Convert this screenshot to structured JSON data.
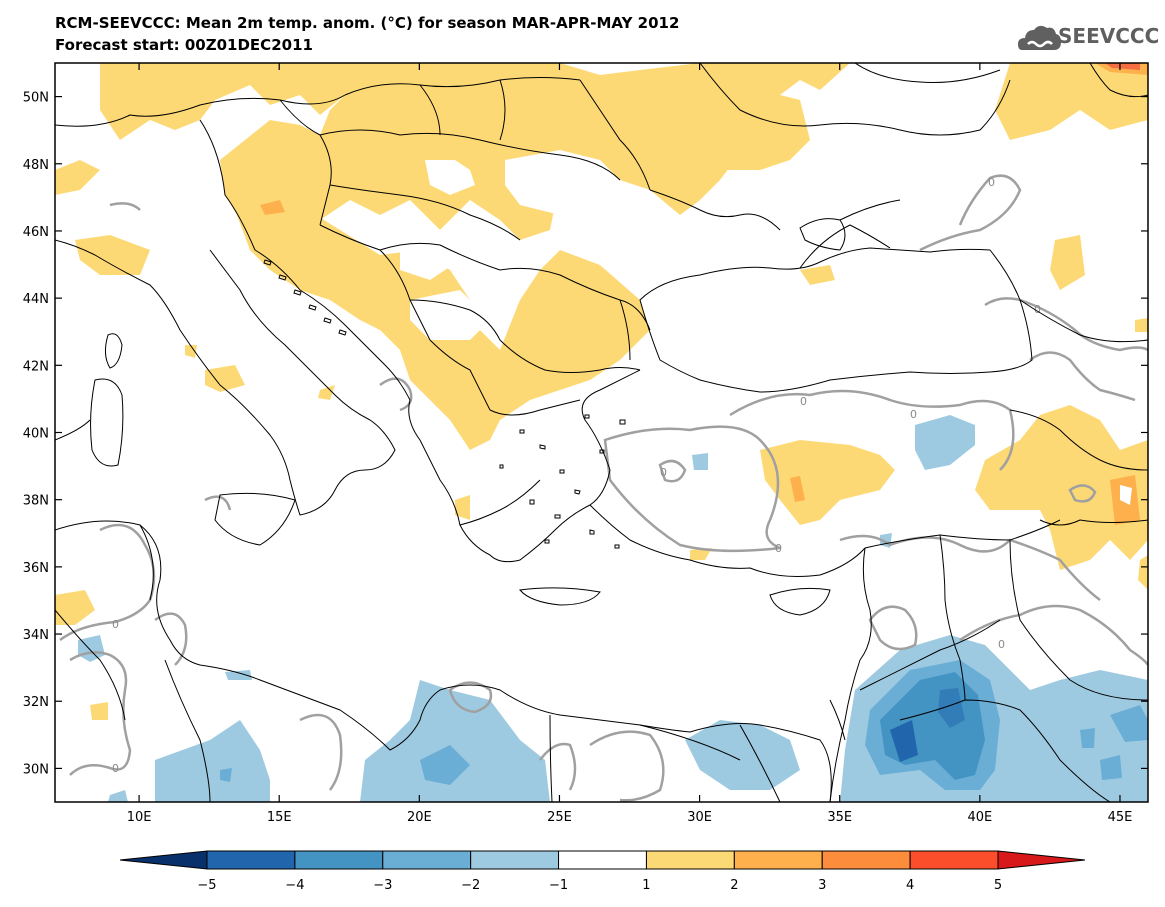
{
  "header": {
    "title_line1": "RCM-SEEVCCC: Mean 2m temp. anom. (°C) for season MAR-APR-MAY 2012",
    "title_line2": "Forecast start: 00Z01DEC2011",
    "logo_text": "SEEVCCC"
  },
  "map": {
    "lon_range": [
      7,
      46
    ],
    "lat_range": [
      29,
      51
    ],
    "lat_ticks": [
      {
        "value": 50,
        "label": "50N"
      },
      {
        "value": 48,
        "label": "48N"
      },
      {
        "value": 46,
        "label": "46N"
      },
      {
        "value": 44,
        "label": "44N"
      },
      {
        "value": 42,
        "label": "42N"
      },
      {
        "value": 40,
        "label": "40N"
      },
      {
        "value": 38,
        "label": "38N"
      },
      {
        "value": 36,
        "label": "36N"
      },
      {
        "value": 34,
        "label": "34N"
      },
      {
        "value": 32,
        "label": "32N"
      },
      {
        "value": 30,
        "label": "30N"
      }
    ],
    "lon_ticks": [
      {
        "value": 10,
        "label": "10E"
      },
      {
        "value": 15,
        "label": "15E"
      },
      {
        "value": 20,
        "label": "20E"
      },
      {
        "value": 25,
        "label": "25E"
      },
      {
        "value": 30,
        "label": "30E"
      },
      {
        "value": 35,
        "label": "35E"
      },
      {
        "value": 40,
        "label": "40E"
      },
      {
        "value": 45,
        "label": "45E"
      }
    ],
    "contour_label": "0"
  },
  "colorbar": {
    "labels": [
      "−5",
      "−4",
      "−3",
      "−2",
      "−1",
      "1",
      "2",
      "3",
      "4",
      "5"
    ],
    "colors": [
      "#08306b",
      "#2166ac",
      "#4393c3",
      "#6aaed6",
      "#9ecae1",
      "#ffffff",
      "#fdd975",
      "#fdb04b",
      "#fd8d3c",
      "#fc4e2a",
      "#d7191c"
    ]
  },
  "palette": {
    "warm1": "#fdd975",
    "warm2": "#fdb04b",
    "warm3": "#f46d43",
    "cold1": "#9ecae1",
    "cold2": "#6aaed6",
    "cold3": "#4393c3",
    "cold4": "#2166ac",
    "contour": "#a0a0a0"
  }
}
